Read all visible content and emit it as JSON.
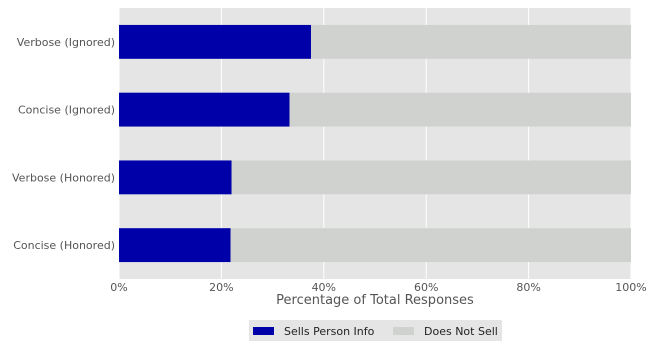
{
  "chart_data": {
    "type": "bar",
    "orientation": "horizontal",
    "stacked": true,
    "categories": [
      "Verbose (Ignored)",
      "Concise (Ignored)",
      "Verbose (Honored)",
      "Concise (Honored)"
    ],
    "series": [
      {
        "name": "Sells Person Info",
        "values": [
          37.5,
          33.3,
          22.0,
          21.8
        ],
        "color": "#0000a8"
      },
      {
        "name": "Does Not Sell",
        "values": [
          62.5,
          66.7,
          78.0,
          78.2
        ],
        "color": "#d0d2d0"
      }
    ],
    "xlabel": "Percentage of Total Responses",
    "ylabel": "",
    "xlim": [
      0,
      100
    ],
    "xticks": [
      0,
      20,
      40,
      60,
      80,
      100
    ],
    "xtick_labels": [
      "0%",
      "20%",
      "40%",
      "60%",
      "80%",
      "100%"
    ],
    "grid": true,
    "legend_position": "bottom-center",
    "background_color": "#e5e5e5"
  }
}
